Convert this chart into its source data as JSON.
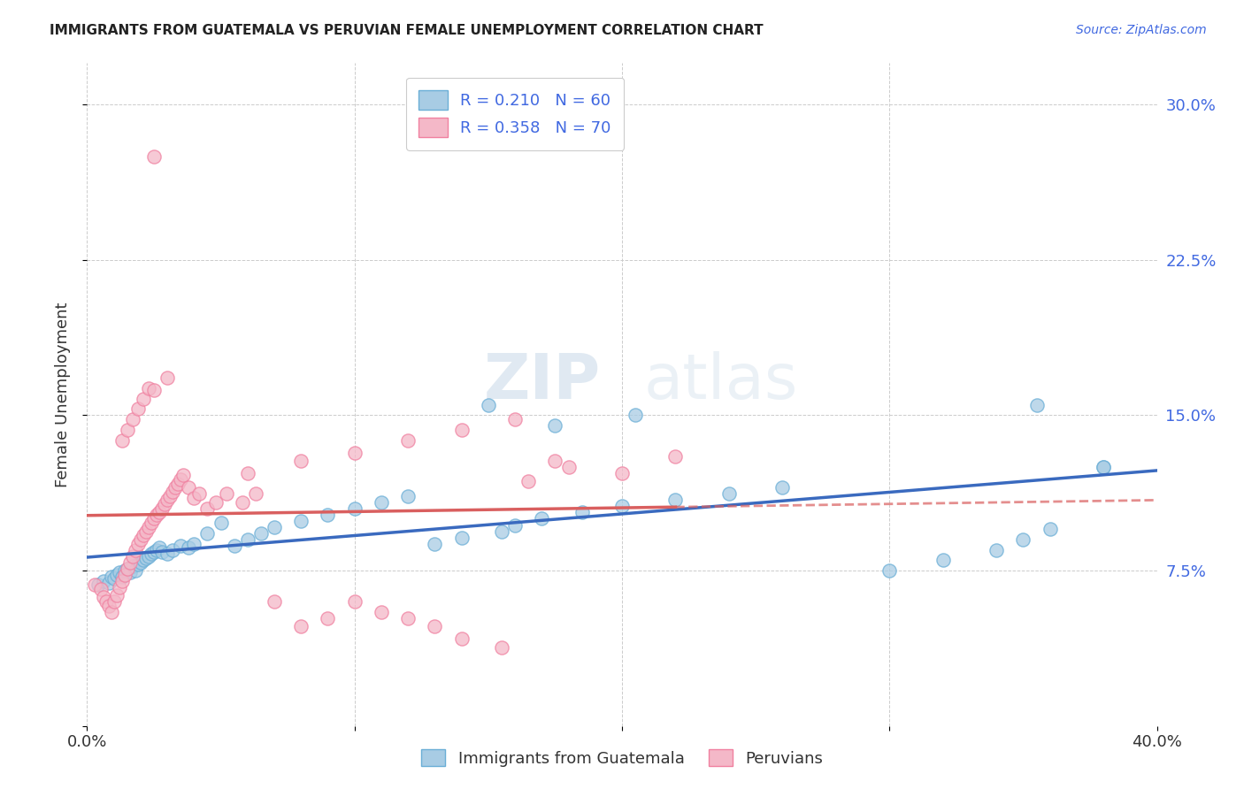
{
  "title": "IMMIGRANTS FROM GUATEMALA VS PERUVIAN FEMALE UNEMPLOYMENT CORRELATION CHART",
  "source": "Source: ZipAtlas.com",
  "ylabel": "Female Unemployment",
  "yticks": [
    0.0,
    0.075,
    0.15,
    0.225,
    0.3
  ],
  "ytick_labels": [
    "",
    "7.5%",
    "15.0%",
    "22.5%",
    "30.0%"
  ],
  "xlim": [
    0.0,
    0.4
  ],
  "ylim": [
    0.0,
    0.32
  ],
  "legend_r1": "R = 0.210",
  "legend_n1": "N = 60",
  "legend_r2": "R = 0.358",
  "legend_n2": "N = 70",
  "legend_label1": "Immigrants from Guatemala",
  "legend_label2": "Peruvians",
  "color_blue": "#a8cce4",
  "color_pink": "#f4b8c8",
  "color_blue_edge": "#6aaed6",
  "color_pink_edge": "#f080a0",
  "trendline_blue": "#3a6abf",
  "trendline_pink": "#d95f5f",
  "watermark_zip": "ZIP",
  "watermark_atlas": "atlas",
  "scatter_blue_x": [
    0.004,
    0.006,
    0.008,
    0.009,
    0.01,
    0.011,
    0.012,
    0.013,
    0.014,
    0.015,
    0.016,
    0.017,
    0.018,
    0.019,
    0.02,
    0.021,
    0.022,
    0.023,
    0.024,
    0.025,
    0.026,
    0.027,
    0.028,
    0.03,
    0.032,
    0.035,
    0.038,
    0.04,
    0.045,
    0.05,
    0.055,
    0.06,
    0.065,
    0.07,
    0.08,
    0.09,
    0.1,
    0.11,
    0.12,
    0.13,
    0.14,
    0.155,
    0.16,
    0.17,
    0.185,
    0.2,
    0.22,
    0.24,
    0.26,
    0.3,
    0.32,
    0.34,
    0.35,
    0.36,
    0.38,
    0.15,
    0.175,
    0.205,
    0.355,
    0.38
  ],
  "scatter_blue_y": [
    0.068,
    0.07,
    0.069,
    0.072,
    0.071,
    0.073,
    0.074,
    0.072,
    0.075,
    0.076,
    0.074,
    0.077,
    0.075,
    0.078,
    0.079,
    0.08,
    0.081,
    0.082,
    0.083,
    0.084,
    0.085,
    0.086,
    0.084,
    0.083,
    0.085,
    0.087,
    0.086,
    0.088,
    0.093,
    0.098,
    0.087,
    0.09,
    0.093,
    0.096,
    0.099,
    0.102,
    0.105,
    0.108,
    0.111,
    0.088,
    0.091,
    0.094,
    0.097,
    0.1,
    0.103,
    0.106,
    0.109,
    0.112,
    0.115,
    0.075,
    0.08,
    0.085,
    0.09,
    0.095,
    0.125,
    0.155,
    0.145,
    0.15,
    0.155,
    0.125
  ],
  "scatter_pink_x": [
    0.003,
    0.005,
    0.006,
    0.007,
    0.008,
    0.009,
    0.01,
    0.011,
    0.012,
    0.013,
    0.014,
    0.015,
    0.016,
    0.017,
    0.018,
    0.019,
    0.02,
    0.021,
    0.022,
    0.023,
    0.024,
    0.025,
    0.026,
    0.027,
    0.028,
    0.029,
    0.03,
    0.031,
    0.032,
    0.033,
    0.034,
    0.035,
    0.036,
    0.038,
    0.04,
    0.042,
    0.045,
    0.048,
    0.052,
    0.058,
    0.063,
    0.07,
    0.08,
    0.09,
    0.1,
    0.11,
    0.12,
    0.13,
    0.14,
    0.155,
    0.165,
    0.18,
    0.2,
    0.22,
    0.013,
    0.015,
    0.017,
    0.019,
    0.021,
    0.023,
    0.025,
    0.06,
    0.08,
    0.1,
    0.12,
    0.14,
    0.16,
    0.025,
    0.03,
    0.175
  ],
  "scatter_pink_y": [
    0.068,
    0.066,
    0.062,
    0.06,
    0.058,
    0.055,
    0.06,
    0.063,
    0.067,
    0.07,
    0.073,
    0.076,
    0.079,
    0.082,
    0.085,
    0.088,
    0.09,
    0.092,
    0.094,
    0.096,
    0.098,
    0.1,
    0.102,
    0.103,
    0.105,
    0.107,
    0.109,
    0.111,
    0.113,
    0.115,
    0.117,
    0.119,
    0.121,
    0.115,
    0.11,
    0.112,
    0.105,
    0.108,
    0.112,
    0.108,
    0.112,
    0.06,
    0.048,
    0.052,
    0.06,
    0.055,
    0.052,
    0.048,
    0.042,
    0.038,
    0.118,
    0.125,
    0.122,
    0.13,
    0.138,
    0.143,
    0.148,
    0.153,
    0.158,
    0.163,
    0.275,
    0.122,
    0.128,
    0.132,
    0.138,
    0.143,
    0.148,
    0.162,
    0.168,
    0.128
  ]
}
